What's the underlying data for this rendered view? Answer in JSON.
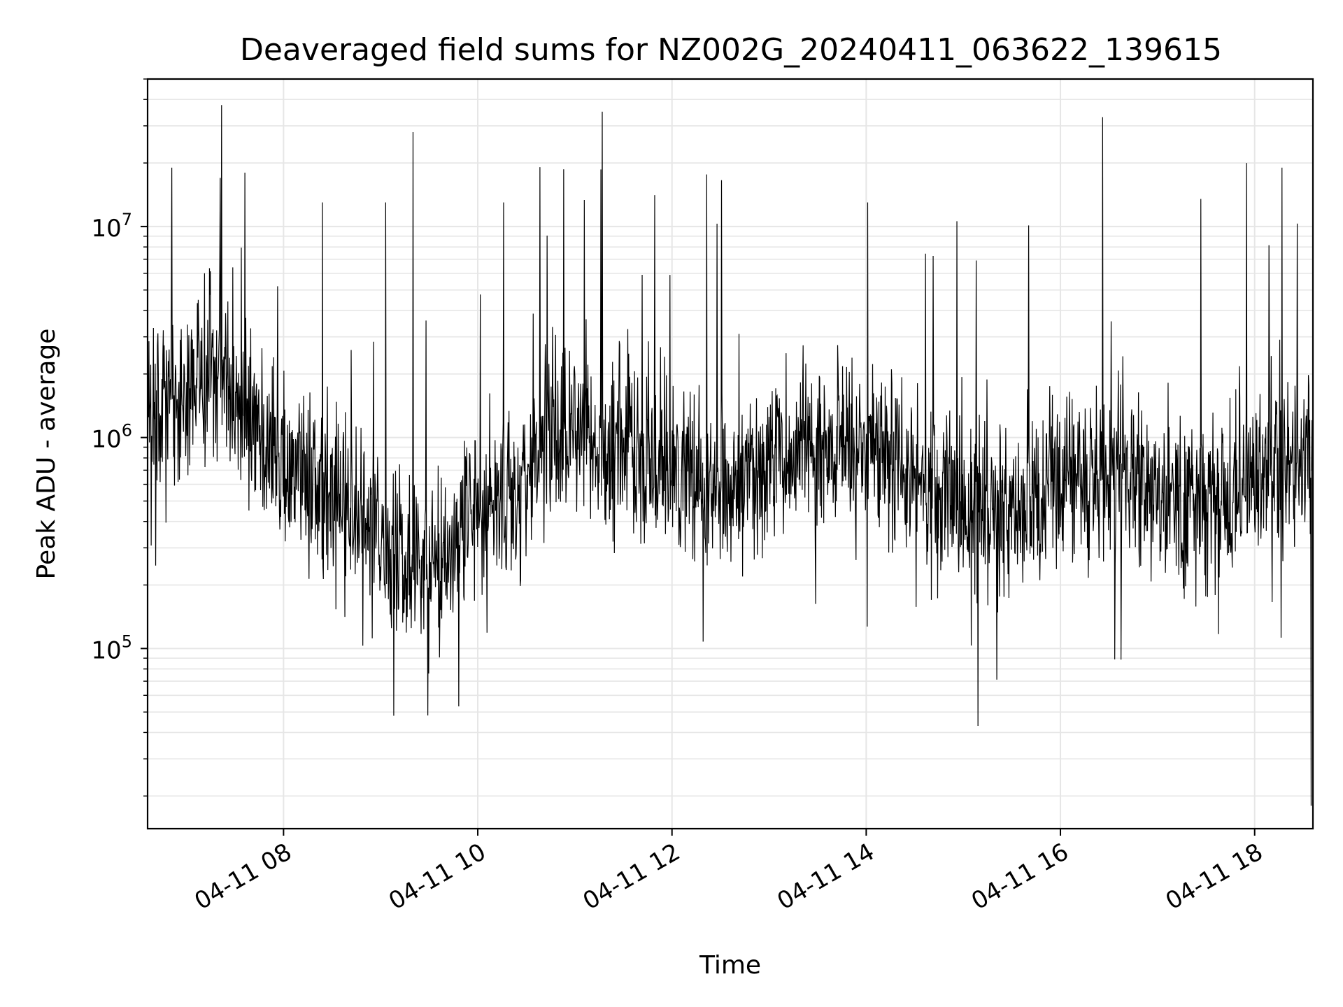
{
  "chart_data": {
    "type": "line",
    "title": "Deaveraged field sums for NZ002G_20240411_063622_139615",
    "xlabel": "Time",
    "ylabel": "Peak ADU - average",
    "y_scale": "log",
    "ylim": [
      14000,
      50000000
    ],
    "xlim": [
      "2024-04-11 06:36",
      "2024-04-11 18:36"
    ],
    "x_ticks": [
      "2024-04-11 08:00",
      "2024-04-11 10:00",
      "2024-04-11 12:00",
      "2024-04-11 14:00",
      "2024-04-11 16:00",
      "2024-04-11 18:00"
    ],
    "x_tick_labels": [
      "04-11 08",
      "04-11 10",
      "04-11 12",
      "04-11 14",
      "04-11 16",
      "04-11 18"
    ],
    "y_ticks": [
      100000,
      1000000,
      10000000
    ],
    "y_tick_labels": [
      {
        "base": "10",
        "exp": "5"
      },
      {
        "base": "10",
        "exp": "6"
      },
      {
        "base": "10",
        "exp": "7"
      }
    ],
    "grid": true,
    "line_color": "#000000",
    "grid_color": "#e6e6e6",
    "series": [
      {
        "x": [
          "2024-04-11 06:36",
          "2024-04-11 06:50",
          "2024-04-11 07:00",
          "2024-04-11 07:10",
          "2024-04-11 07:20",
          "2024-04-11 07:30",
          "2024-04-11 07:40",
          "2024-04-11 07:50",
          "2024-04-11 08:00",
          "2024-04-11 08:15",
          "2024-04-11 08:30",
          "2024-04-11 08:45",
          "2024-04-11 09:00",
          "2024-04-11 09:15",
          "2024-04-11 09:30",
          "2024-04-11 09:45",
          "2024-04-11 10:00",
          "2024-04-11 10:15",
          "2024-04-11 10:30",
          "2024-04-11 10:45",
          "2024-04-11 11:00",
          "2024-04-11 11:15",
          "2024-04-11 11:30",
          "2024-04-11 11:45",
          "2024-04-11 12:00",
          "2024-04-11 12:30",
          "2024-04-11 13:00",
          "2024-04-11 13:30",
          "2024-04-11 14:00",
          "2024-04-11 14:30",
          "2024-04-11 15:00",
          "2024-04-11 15:30",
          "2024-04-11 16:00",
          "2024-04-11 16:30",
          "2024-04-11 17:00",
          "2024-04-11 17:30",
          "2024-04-11 18:00",
          "2024-04-11 18:30"
        ],
        "values": [
          1400000,
          1600000,
          1800000,
          1700000,
          1900000,
          1500000,
          1100000,
          900000,
          800000,
          700000,
          600000,
          420000,
          330000,
          250000,
          230000,
          300000,
          450000,
          550000,
          700000,
          1000000,
          1100000,
          1000000,
          900000,
          800000,
          700000,
          600000,
          700000,
          850000,
          900000,
          650000,
          500000,
          420000,
          600000,
          700000,
          550000,
          500000,
          650000,
          750000
        ]
      }
    ],
    "spikes": [
      {
        "x": "2024-04-11 06:51",
        "value": 19000000
      },
      {
        "x": "2024-04-11 07:21",
        "value": 17000000
      },
      {
        "x": "2024-04-11 07:36",
        "value": 18000000
      },
      {
        "x": "2024-04-11 08:24",
        "value": 13000000
      },
      {
        "x": "2024-04-11 09:20",
        "value": 28000000
      },
      {
        "x": "2024-04-11 09:03",
        "value": 13000000
      },
      {
        "x": "2024-04-11 10:16",
        "value": 13000000
      },
      {
        "x": "2024-04-11 11:17",
        "value": 35000000
      },
      {
        "x": "2024-04-11 14:01",
        "value": 13000000
      },
      {
        "x": "2024-04-11 15:08",
        "value": 6900000
      },
      {
        "x": "2024-04-11 16:26",
        "value": 33000000
      },
      {
        "x": "2024-04-11 17:55",
        "value": 20000000
      },
      {
        "x": "2024-04-11 18:17",
        "value": 19000000
      },
      {
        "x": "2024-04-11 09:08",
        "value": 48000
      },
      {
        "x": "2024-04-11 15:09",
        "value": 43000
      },
      {
        "x": "2024-04-11 18:35",
        "value": 18000
      }
    ]
  }
}
